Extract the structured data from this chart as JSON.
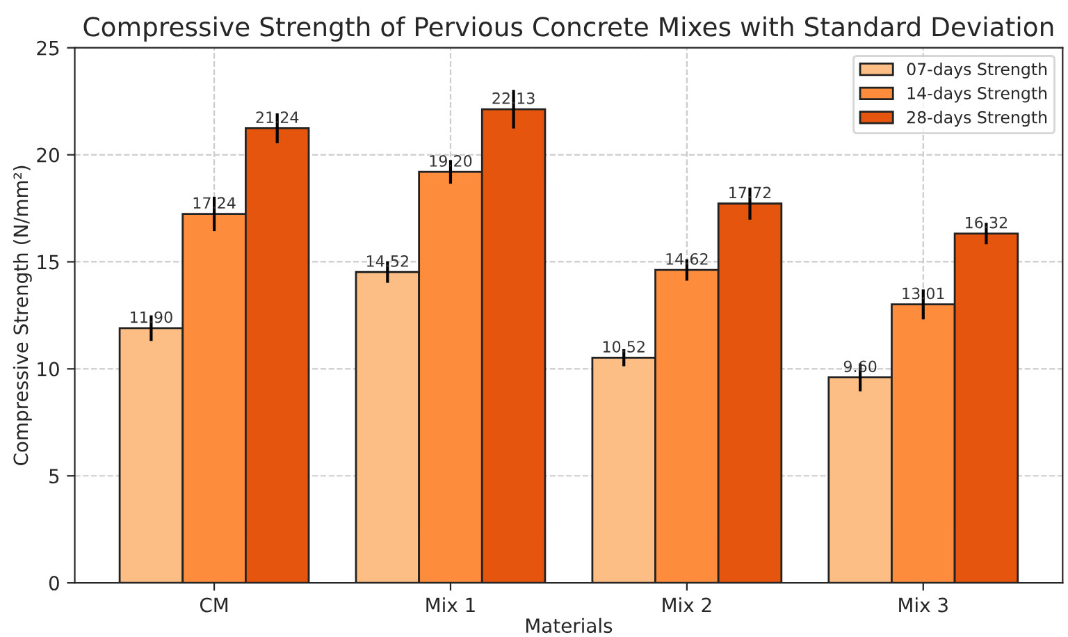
{
  "chart_data": {
    "type": "bar",
    "title": "Compressive Strength of Pervious Concrete Mixes with Standard Deviation",
    "xlabel": "Materials",
    "ylabel": "Compressive Strength (N/mm²)",
    "categories": [
      "CM",
      "Mix 1",
      "Mix 2",
      "Mix 3"
    ],
    "series": [
      {
        "name": "07-days Strength",
        "color": "#fdbe85",
        "values": [
          11.9,
          14.52,
          10.52,
          9.6
        ],
        "value_labels": [
          "11.90",
          "14.52",
          "10.52",
          "9.60"
        ],
        "errors": [
          0.6,
          0.5,
          0.4,
          0.65
        ]
      },
      {
        "name": "14-days Strength",
        "color": "#fd8d3c",
        "values": [
          17.24,
          19.2,
          14.62,
          13.01
        ],
        "value_labels": [
          "17.24",
          "19.20",
          "14.62",
          "13.01"
        ],
        "errors": [
          0.8,
          0.55,
          0.5,
          0.7
        ]
      },
      {
        "name": "28-days Strength",
        "color": "#e6550d",
        "values": [
          21.24,
          22.13,
          17.72,
          16.32
        ],
        "value_labels": [
          "21.24",
          "22.13",
          "17.72",
          "16.32"
        ],
        "errors": [
          0.7,
          0.9,
          0.75,
          0.5
        ]
      }
    ],
    "ylim": [
      0,
      25
    ],
    "yticks": [
      0,
      5,
      10,
      15,
      20,
      25
    ],
    "grid": true,
    "legend": "top right"
  }
}
